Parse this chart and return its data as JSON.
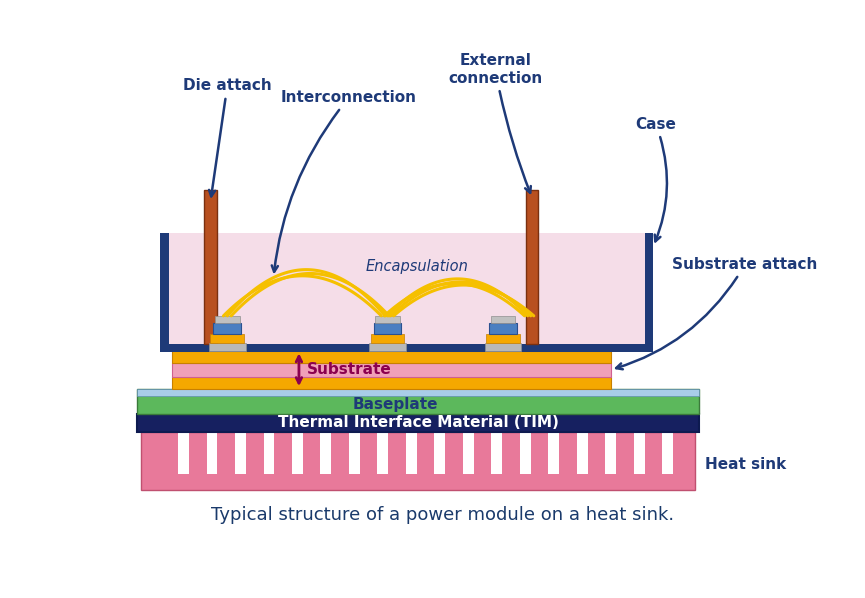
{
  "bg_color": "#ffffff",
  "caption": "Typical structure of a power module on a heat sink.",
  "caption_color": "#1a3a6b",
  "caption_fontsize": 13,
  "colors": {
    "case_border": "#1e3a78",
    "encapsulation_fill": "#f5dde8",
    "baseplate_green": "#5cb85c",
    "baseplate_blue_top": "#a8cde8",
    "tim_dark": "#162060",
    "substrate_yellow": "#f5a800",
    "substrate_pink": "#f0a0b8",
    "heat_sink_pink": "#e8799a",
    "die_blue": "#4a7fc1",
    "connector_orange": "#b85020",
    "wire_yellow": "#f5c000",
    "arrow_color": "#1e3a78",
    "label_color": "#1e3a78",
    "substrate_label": "#8b0050",
    "baseplate_label": "#1e3a78",
    "tim_label": "#ffffff"
  },
  "labels": {
    "die_attach": "Die attach",
    "interconnection": "Interconnection",
    "external_connection": "External\nconnection",
    "case": "Case",
    "encapsulation": "Encapsulation",
    "substrate_attach": "Substrate attach",
    "substrate": "Substrate",
    "baseplate": "Baseplate",
    "tim": "Thermal Interface Material (TIM)",
    "heat_sink": "Heat sink"
  }
}
